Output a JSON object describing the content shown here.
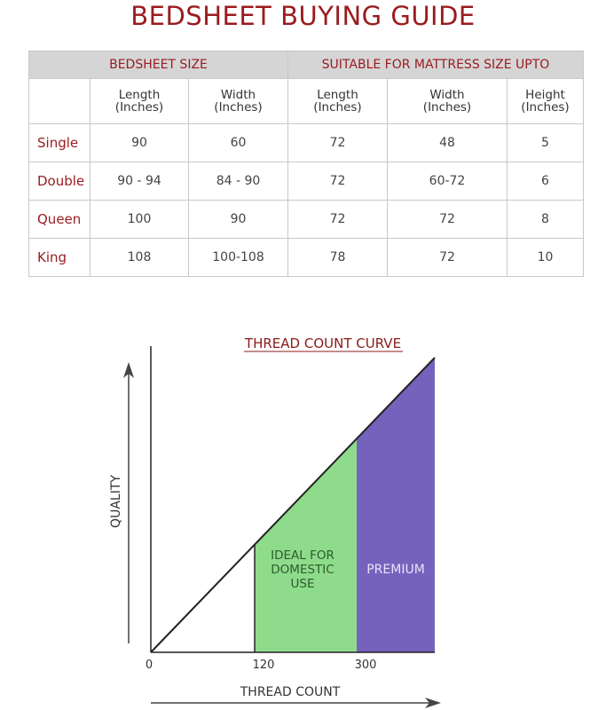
{
  "title": "BEDSHEET BUYING GUIDE",
  "table": {
    "group_headers": [
      "BEDSHEET SIZE",
      "SUITABLE FOR MATTRESS SIZE UPTO"
    ],
    "sub_headers": [
      {
        "line1": "Length",
        "line2": "(Inches)"
      },
      {
        "line1": "Width",
        "line2": "(Inches)"
      },
      {
        "line1": "Length",
        "line2": "(Inches)"
      },
      {
        "line1": "Width",
        "line2": "(Inches)"
      },
      {
        "line1": "Height",
        "line2": "(Inches)"
      }
    ],
    "rows": [
      {
        "label": "Single",
        "cells": [
          "90",
          "60",
          "72",
          "48",
          "5"
        ]
      },
      {
        "label": "Double",
        "cells": [
          "90 - 94",
          "84 - 90",
          "72",
          "60-72",
          "6"
        ]
      },
      {
        "label": "Queen",
        "cells": [
          "100",
          "90",
          "72",
          "72",
          "8"
        ]
      },
      {
        "label": "King",
        "cells": [
          "108",
          "100-108",
          "78",
          "72",
          "10"
        ]
      }
    ]
  },
  "chart_data": {
    "type": "area",
    "title": "THREAD COUNT CURVE",
    "xlabel": "THREAD COUNT",
    "ylabel": "QUALITY",
    "x_ticks": [
      "0",
      "120",
      "300"
    ],
    "line": "quality increases linearly with thread count",
    "regions": [
      {
        "label": "IDEAL FOR DOMESTIC USE",
        "x_start": 120,
        "x_end": 300,
        "color": "#8edc8b"
      },
      {
        "label": "PREMIUM",
        "x_start": 300,
        "x_end": null,
        "color": "#7562bd"
      }
    ],
    "title_color": "#8b1a1a",
    "grid": false
  }
}
